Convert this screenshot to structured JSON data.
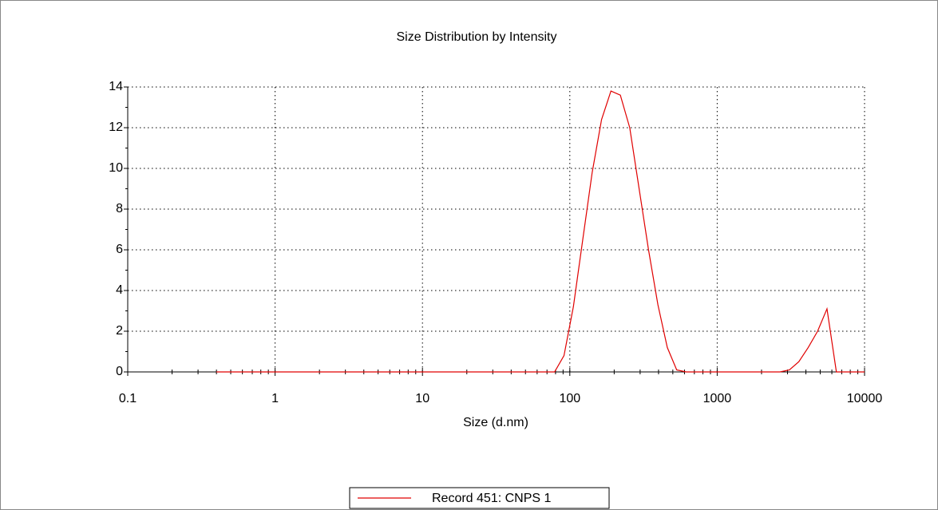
{
  "chart_data": {
    "type": "line",
    "title": "Size Distribution by Intensity",
    "x_label": "Size (d.nm)",
    "x": [
      0.4,
      0.4632,
      0.5365,
      0.6213,
      0.7195,
      0.8332,
      0.9649,
      1.117,
      1.294,
      1.499,
      1.736,
      2.01,
      2.328,
      2.696,
      3.122,
      3.615,
      4.187,
      4.849,
      5.615,
      6.503,
      7.531,
      8.721,
      10.1,
      11.7,
      13.54,
      15.69,
      18.17,
      21.04,
      24.36,
      28.21,
      32.67,
      37.84,
      43.82,
      50.75,
      58.77,
      68.06,
      78.82,
      91.28,
      105.7,
      122.4,
      141.8,
      164.2,
      190.1,
      220.2,
      255.0,
      295.3,
      342.0,
      396.1,
      458.7,
      531.2,
      615.1,
      712.4,
      825.0,
      955.4,
      1106,
      1281,
      1484,
      1718,
      1990,
      2305,
      2669,
      3091,
      3580,
      4145,
      4801,
      5560,
      6439,
      7456,
      8635,
      10000
    ],
    "series": [
      {
        "name": "Record 451: CNPS 1",
        "color": "#e00000",
        "values": [
          0,
          0,
          0,
          0,
          0,
          0,
          0,
          0,
          0,
          0,
          0,
          0,
          0,
          0,
          0,
          0,
          0,
          0,
          0,
          0,
          0,
          0,
          0,
          0,
          0,
          0,
          0,
          0,
          0,
          0,
          0,
          0,
          0,
          0,
          0,
          0,
          0,
          0.8,
          3.2,
          6.5,
          9.8,
          12.4,
          13.8,
          13.6,
          12.0,
          9.0,
          6.0,
          3.3,
          1.2,
          0.1,
          0,
          0,
          0,
          0,
          0,
          0,
          0,
          0,
          0,
          0,
          0,
          0.1,
          0.5,
          1.2,
          2.0,
          3.1,
          0,
          0,
          0,
          0
        ]
      }
    ],
    "xlim": [
      0.1,
      10000
    ],
    "xticks": [
      0.1,
      1,
      10,
      100,
      1000,
      10000
    ],
    "xscale": "log",
    "ylim": [
      0,
      14
    ],
    "yticks": [
      0,
      2,
      4,
      6,
      8,
      10,
      12,
      14
    ],
    "grid": true,
    "legend": "bottom"
  }
}
